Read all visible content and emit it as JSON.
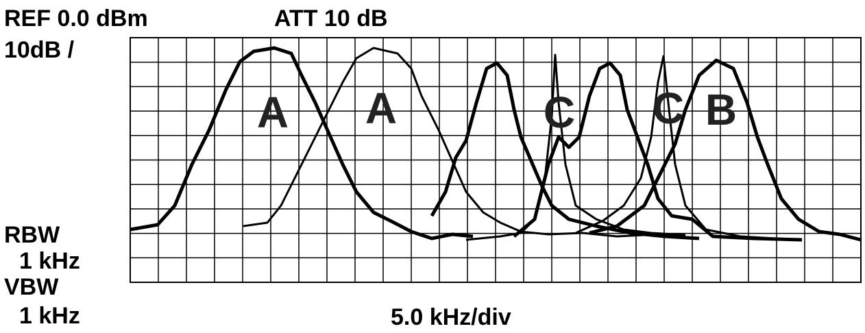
{
  "header": {
    "ref": "REF 0.0 dBm",
    "att": "ATT 10 dB",
    "scale": "10dB /"
  },
  "settings": {
    "rbw_label": "RBW",
    "rbw": "1 kHz",
    "vbw_label": "VBW",
    "vbw": "1 kHz"
  },
  "footer": {
    "span": "5.0 kHz/div"
  },
  "trace_labels": [
    "A",
    "A",
    "C",
    "C",
    "B"
  ]
}
